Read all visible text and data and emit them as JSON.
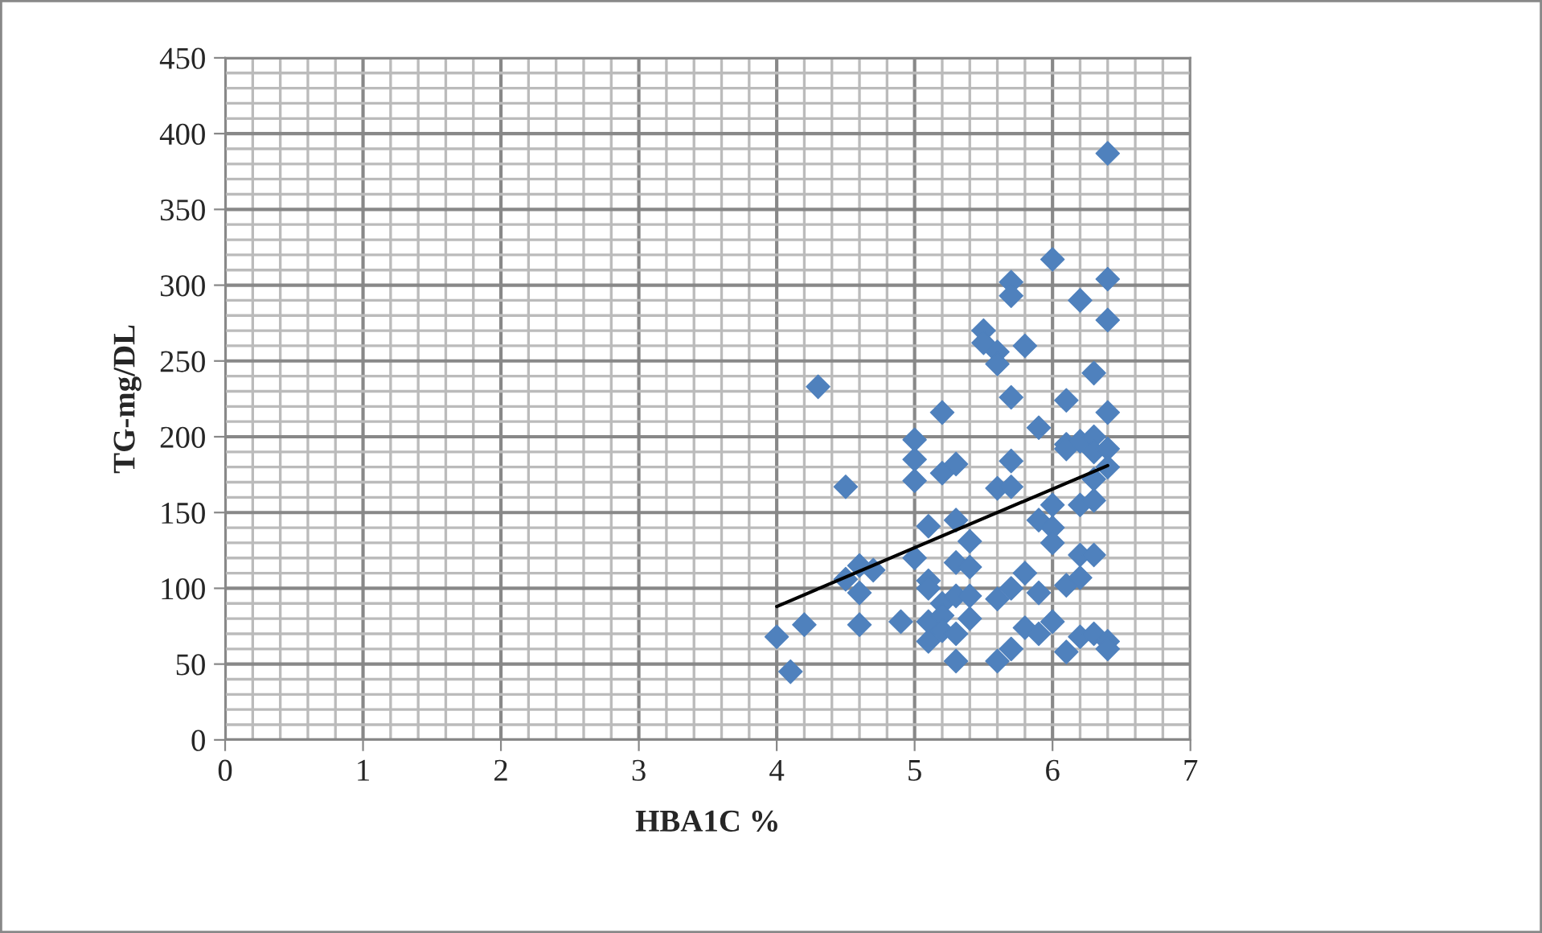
{
  "chart_data": {
    "type": "scatter",
    "xlabel": "HBA1C %",
    "ylabel": "TG-mg/DL",
    "xlim": [
      0,
      7
    ],
    "xticks": [
      0,
      1,
      2,
      3,
      4,
      5,
      6,
      7
    ],
    "ylim": [
      0,
      450
    ],
    "yticks": [
      0,
      50,
      100,
      150,
      200,
      250,
      300,
      350,
      400,
      450
    ],
    "grid": true,
    "legend": false,
    "series": [
      {
        "color": "#4f81bd",
        "marker": "diamond",
        "x": [
          4.0,
          4.1,
          4.2,
          4.3,
          4.5,
          4.5,
          4.6,
          4.6,
          4.6,
          4.7,
          4.9,
          5.0,
          5.0,
          5.0,
          5.0,
          5.1,
          5.1,
          5.1,
          5.1,
          5.1,
          5.2,
          5.2,
          5.2,
          5.2,
          5.2,
          5.3,
          5.3,
          5.3,
          5.3,
          5.3,
          5.3,
          5.4,
          5.4,
          5.4,
          5.4,
          5.5,
          5.5,
          5.6,
          5.6,
          5.6,
          5.6,
          5.6,
          5.7,
          5.7,
          5.7,
          5.7,
          5.7,
          5.7,
          5.7,
          5.8,
          5.8,
          5.8,
          5.9,
          5.9,
          5.9,
          5.9,
          6.0,
          6.0,
          6.0,
          6.0,
          6.0,
          6.1,
          6.1,
          6.1,
          6.1,
          6.1,
          6.2,
          6.2,
          6.2,
          6.2,
          6.2,
          6.2,
          6.3,
          6.3,
          6.3,
          6.3,
          6.3,
          6.3,
          6.3,
          6.4,
          6.4,
          6.4,
          6.4,
          6.4,
          6.4,
          6.4,
          6.4
        ],
        "values": [
          68,
          45,
          76,
          233,
          167,
          106,
          115,
          97,
          76,
          112,
          78,
          198,
          185,
          171,
          120,
          141,
          105,
          100,
          78,
          65,
          216,
          176,
          90,
          82,
          72,
          182,
          145,
          117,
          95,
          70,
          52,
          131,
          114,
          95,
          80,
          270,
          262,
          256,
          248,
          166,
          93,
          52,
          302,
          293,
          226,
          184,
          167,
          100,
          60,
          260,
          110,
          74,
          206,
          145,
          97,
          70,
          317,
          155,
          140,
          130,
          78,
          224,
          195,
          192,
          102,
          58,
          290,
          197,
          155,
          122,
          107,
          68,
          242,
          200,
          190,
          172,
          158,
          122,
          70,
          387,
          304,
          277,
          216,
          192,
          180,
          65,
          60
        ]
      },
      {
        "type": "line",
        "marker": "none",
        "color": "#000000",
        "x": [
          4.0,
          6.4
        ],
        "values": [
          88,
          181
        ]
      }
    ]
  }
}
